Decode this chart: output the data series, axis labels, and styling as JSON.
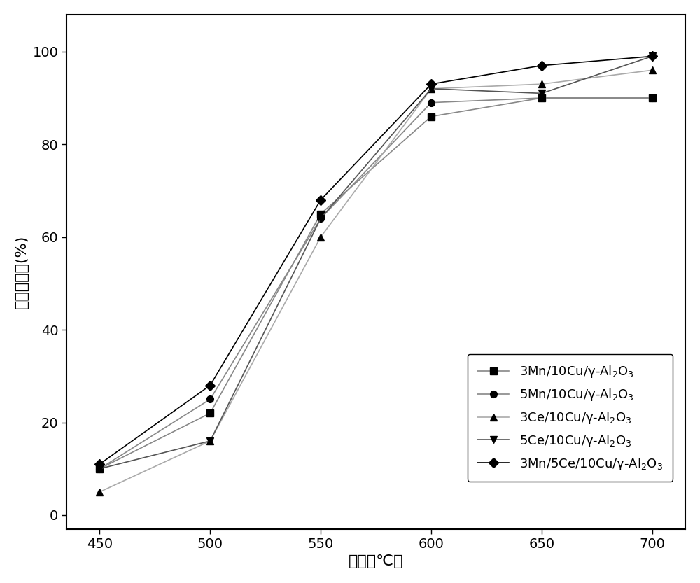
{
  "x": [
    450,
    500,
    550,
    600,
    650,
    700
  ],
  "series": [
    {
      "values": [
        10,
        22,
        65,
        86,
        90,
        90
      ],
      "color": "#000000",
      "marker": "s",
      "markersize": 7,
      "linewidth": 1.2,
      "line_color": "#888888"
    },
    {
      "values": [
        10,
        25,
        64,
        89,
        90,
        90
      ],
      "color": "#000000",
      "marker": "o",
      "markersize": 7,
      "linewidth": 1.2,
      "line_color": "#888888"
    },
    {
      "values": [
        5,
        16,
        60,
        92,
        93,
        96
      ],
      "color": "#000000",
      "marker": "^",
      "markersize": 7,
      "linewidth": 1.2,
      "line_color": "#aaaaaa"
    },
    {
      "values": [
        10,
        16,
        64,
        92,
        91,
        99
      ],
      "color": "#000000",
      "marker": "v",
      "markersize": 7,
      "linewidth": 1.2,
      "line_color": "#555555"
    },
    {
      "values": [
        11,
        28,
        68,
        93,
        97,
        99
      ],
      "color": "#000000",
      "marker": "D",
      "markersize": 7,
      "linewidth": 1.2,
      "line_color": "#000000"
    }
  ],
  "legend_labels": [
    "3Mn/10Cu/γ-Al$_2$O$_3$",
    "5Mn/10Cu/γ-Al$_2$O$_3$",
    "3Ce/10Cu/γ-Al$_2$O$_3$",
    "5Ce/10Cu/γ-Al$_2$O$_3$",
    "3Mn/5Ce/10Cu/γ-Al$_2$O$_3$"
  ],
  "xlabel": "温度（℃）",
  "ylabel": "甲烷转化率(%)",
  "xlim": [
    435,
    715
  ],
  "ylim": [
    -3,
    108
  ],
  "xticks": [
    450,
    500,
    550,
    600,
    650,
    700
  ],
  "yticks": [
    0,
    20,
    40,
    60,
    80,
    100
  ],
  "label_fontsize": 16,
  "tick_fontsize": 14,
  "legend_fontsize": 13,
  "background_color": "#ffffff"
}
